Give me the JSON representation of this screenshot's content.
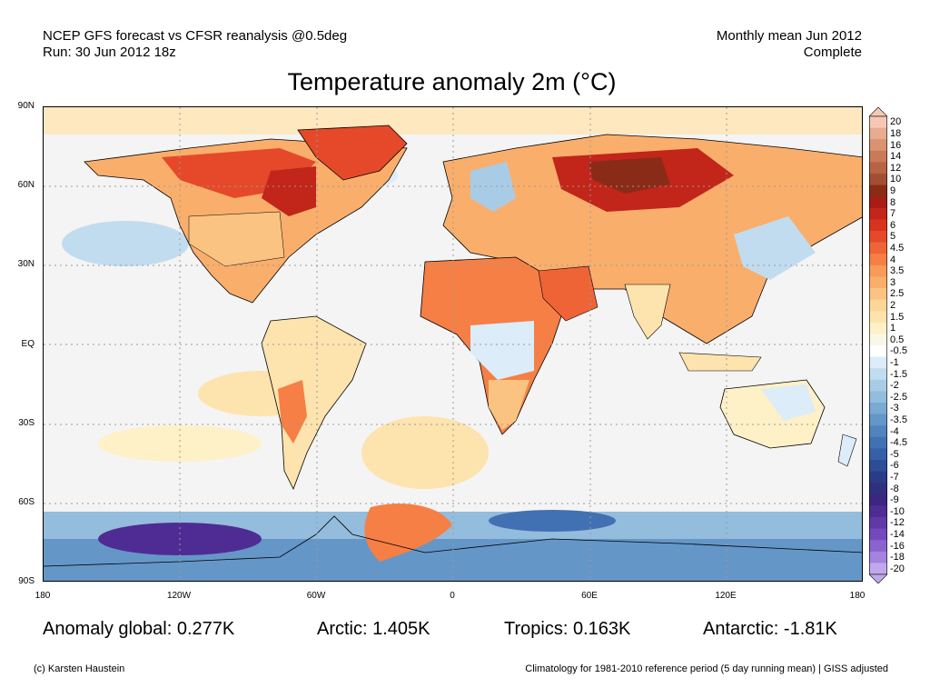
{
  "header": {
    "line1": "NCEP GFS forecast vs CFSR reanalysis @0.5deg",
    "line2": "Run: 30 Jun 2012 18z",
    "right1": "Monthly mean Jun 2012",
    "right2": "Complete"
  },
  "title": "Temperature anomaly 2m (°C)",
  "lat_labels": [
    "90N",
    "60N",
    "30N",
    "EQ",
    "30S",
    "60S",
    "90S"
  ],
  "lon_labels": [
    "180",
    "120W",
    "60W",
    "0",
    "60E",
    "120E",
    "180"
  ],
  "colorbar": {
    "labels": [
      "20",
      "18",
      "16",
      "14",
      "12",
      "10",
      "9",
      "8",
      "7",
      "6",
      "5",
      "4.5",
      "4",
      "3.5",
      "3",
      "2.5",
      "2",
      "1.5",
      "1",
      "0.5",
      "-0.5",
      "-1",
      "-1.5",
      "-2",
      "-2.5",
      "-3",
      "-3.5",
      "-4",
      "-4.5",
      "-5",
      "-6",
      "-7",
      "-8",
      "-9",
      "-10",
      "-12",
      "-14",
      "-16",
      "-18",
      "-20"
    ],
    "colors": [
      "#f6c8b4",
      "#e7ab90",
      "#d99272",
      "#c97a58",
      "#b86444",
      "#a24e34",
      "#8a2b18",
      "#a81c14",
      "#c2251a",
      "#d8331f",
      "#e5492a",
      "#ef6437",
      "#f57f45",
      "#f89a58",
      "#faae6c",
      "#fbc381",
      "#fdd596",
      "#fde3ad",
      "#fef0c7",
      "#fbf7e6",
      "#ffffff",
      "#dcecf8",
      "#c2dcef",
      "#a9cce6",
      "#93bcdd",
      "#7aa9d3",
      "#6596c8",
      "#5183bd",
      "#4171b2",
      "#3560a6",
      "#2c4d98",
      "#2a3b8a",
      "#31307f",
      "#3d2680",
      "#4f2c93",
      "#6038a8",
      "#7449bd",
      "#8a63cf",
      "#a383de",
      "#c1a8ec"
    ],
    "top_cap": "#f6c8b4",
    "bottom_cap": "#c1a8ec"
  },
  "stats": {
    "global": "Anomaly global: 0.277K",
    "arctic": "Arctic: 1.405K",
    "tropics": "Tropics: 0.163K",
    "antarctic": "Antarctic: -1.81K"
  },
  "footer": {
    "left": "(c) Karsten Haustein",
    "right": "Climatology for 1981-2010 reference period (5 day running mean) | GISS adjusted"
  },
  "map": {
    "ocean_color": "#f4f4f4",
    "land_outline_color": "#000000",
    "grid_color": "#9a9a9a"
  }
}
